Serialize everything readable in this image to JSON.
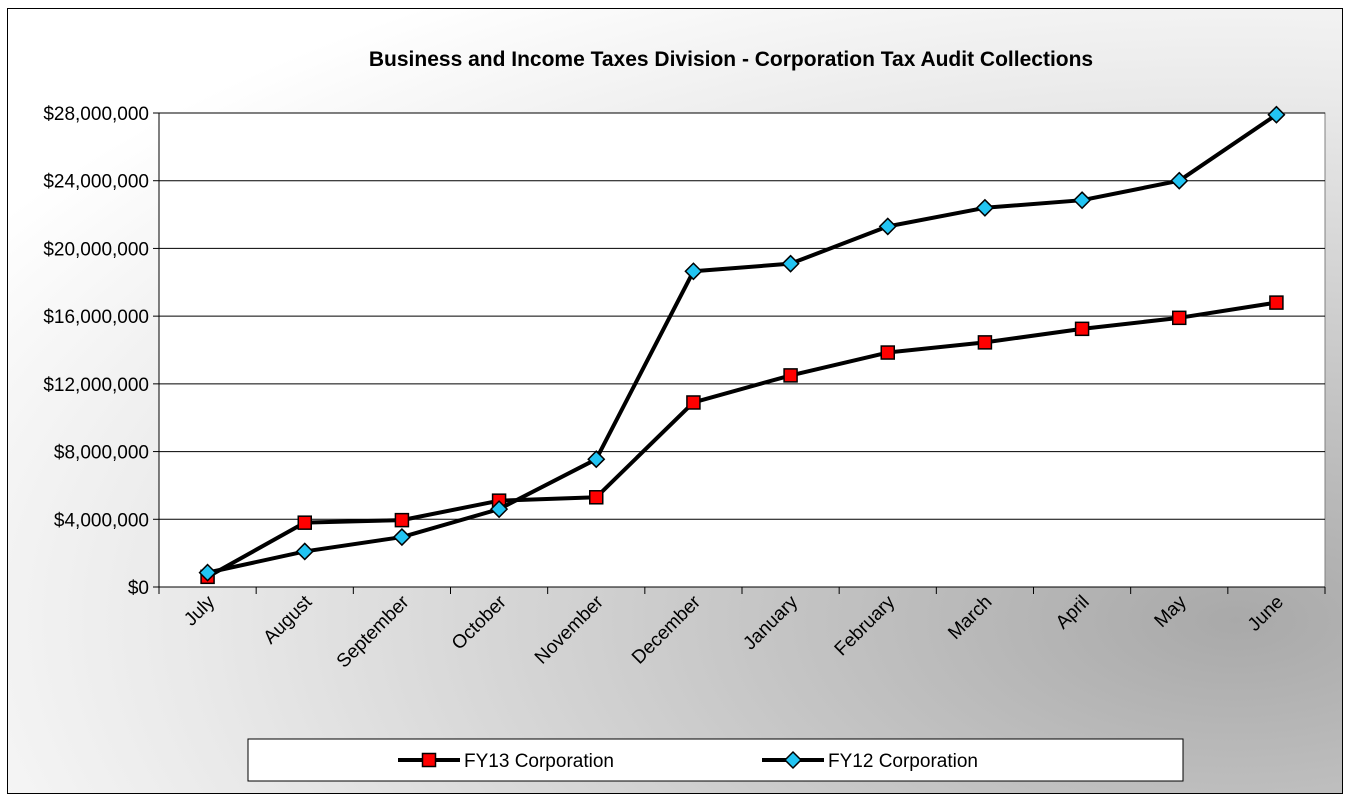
{
  "chart_data": {
    "type": "line",
    "title": "Business and Income Taxes Division - Corporation Tax Audit Collections",
    "xlabel": "",
    "ylabel": "",
    "categories": [
      "July",
      "August",
      "September",
      "October",
      "November",
      "December",
      "January",
      "February",
      "March",
      "April",
      "May",
      "June"
    ],
    "y_ticks": [
      "$0",
      "$4,000,000",
      "$8,000,000",
      "$12,000,000",
      "$16,000,000",
      "$20,000,000",
      "$24,000,000",
      "$28,000,000"
    ],
    "ylim": [
      0,
      28000000
    ],
    "grid": true,
    "legend_position": "bottom",
    "series": [
      {
        "name": "FY13 Corporation",
        "marker": "square",
        "marker_color": "#ff0000",
        "line_color": "#000000",
        "values": [
          600000,
          3800000,
          3950000,
          5100000,
          5300000,
          10900000,
          12500000,
          13850000,
          14450000,
          15250000,
          15900000,
          16800000
        ]
      },
      {
        "name": "FY12 Corporation",
        "marker": "diamond",
        "marker_color": "#22c4f2",
        "line_color": "#000000",
        "values": [
          850000,
          2100000,
          2950000,
          4600000,
          7550000,
          18650000,
          19100000,
          21300000,
          22400000,
          22850000,
          24000000,
          27900000
        ]
      }
    ]
  }
}
